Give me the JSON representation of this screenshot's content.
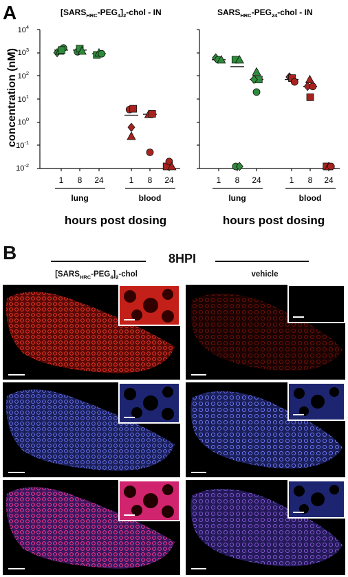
{
  "panel_a": {
    "letter": "A",
    "left_title": {
      "a": "[SARS",
      "b": "HRC",
      "c": "-PEG",
      "d": "4",
      "e": "]",
      "f": "2",
      "g": "-chol - IN"
    },
    "right_title": {
      "a": "SARS",
      "b": "HRC",
      "c": "-PEG",
      "d": "24",
      "e": "-chol - IN"
    },
    "ylabel": "concentration (nM)",
    "xlabel": "hours post dosing",
    "tissue_labels": [
      "lung",
      "blood"
    ],
    "y_tick_labels": [
      "10",
      "10",
      "10",
      "10",
      "10",
      "10",
      "10"
    ],
    "y_tick_exponents": [
      "4",
      "3",
      "2",
      "1",
      "0",
      "-1",
      "-2"
    ],
    "x_tick_labels": [
      "1",
      "8",
      "24",
      "1",
      "8",
      "24"
    ]
  },
  "panel_b": {
    "letter": "B",
    "header": "8HPI",
    "col_left": {
      "a": "[SARS",
      "b": "HRC",
      "c": "-PEG",
      "d": "4",
      "e": "]",
      "f": "2",
      "g": "-chol"
    },
    "col_right": "vehicle",
    "rows": [
      "red channel",
      "blue channel",
      "merge"
    ]
  },
  "colors": {
    "lung": "#2e8b3a",
    "blood": "#a8231f",
    "outline": "#111111"
  },
  "chart_data": [
    {
      "type": "scatter",
      "title": "[SARSHRC-PEG4]2-chol - IN",
      "ylabel": "concentration (nM)",
      "xlabel": "hours post dosing",
      "yscale": "log",
      "ylim": [
        0.01,
        10000
      ],
      "categories": [
        "lung 1",
        "lung 8",
        "lung 24",
        "blood 1",
        "blood 8",
        "blood 24"
      ],
      "series": [
        {
          "name": "lung",
          "points": [
            {
              "cat": 0,
              "y": 1000,
              "m": "diamond",
              "dx": -0.22
            },
            {
              "cat": 0,
              "y": 1200,
              "m": "triangle",
              "dx": -0.08
            },
            {
              "cat": 0,
              "y": 1600,
              "m": "circle",
              "dx": 0.12
            },
            {
              "cat": 0,
              "y": 1300,
              "m": "square",
              "dx": 0.02
            },
            {
              "cat": 1,
              "y": 1100,
              "m": "circle",
              "dx": -0.12
            },
            {
              "cat": 1,
              "y": 1500,
              "m": "square",
              "dx": 0.0
            },
            {
              "cat": 1,
              "y": 1200,
              "m": "triangle",
              "dx": 0.12
            },
            {
              "cat": 2,
              "y": 800,
              "m": "square",
              "dx": -0.12
            },
            {
              "cat": 2,
              "y": 1000,
              "m": "triangle",
              "dx": 0.0
            },
            {
              "cat": 2,
              "y": 900,
              "m": "circle",
              "dx": 0.14
            }
          ],
          "medians": [
            1300,
            1300,
            900
          ]
        },
        {
          "name": "blood",
          "points": [
            {
              "cat": 3,
              "y": 3.5,
              "m": "circle",
              "dx": -0.1
            },
            {
              "cat": 3,
              "y": 3.8,
              "m": "square",
              "dx": 0.1
            },
            {
              "cat": 3,
              "y": 0.6,
              "m": "diamond",
              "dx": 0.0
            },
            {
              "cat": 3,
              "y": 0.25,
              "m": "triangle",
              "dx": 0.0
            },
            {
              "cat": 4,
              "y": 2.2,
              "m": "triangle",
              "dx": -0.06
            },
            {
              "cat": 4,
              "y": 2.3,
              "m": "square",
              "dx": 0.12
            },
            {
              "cat": 4,
              "y": 0.05,
              "m": "circle",
              "dx": 0.0
            },
            {
              "cat": 5,
              "y": 0.01,
              "m": "square",
              "dx": -0.14
            },
            {
              "cat": 5,
              "y": 0.02,
              "m": "circle",
              "dx": 0.0
            },
            {
              "cat": 5,
              "y": 0.01,
              "m": "triangle",
              "dx": 0.14
            }
          ],
          "medians": [
            2.0,
            2.2,
            0.01
          ]
        }
      ]
    },
    {
      "type": "scatter",
      "title": "SARSHRC-PEG24-chol - IN",
      "ylabel": "concentration (nM)",
      "xlabel": "hours post dosing",
      "yscale": "log",
      "ylim": [
        0.01,
        10000
      ],
      "categories": [
        "lung 1",
        "lung 8",
        "lung 24",
        "blood 1",
        "blood 8",
        "blood 24"
      ],
      "series": [
        {
          "name": "lung",
          "points": [
            {
              "cat": 0,
              "y": 600,
              "m": "diamond",
              "dx": -0.16
            },
            {
              "cat": 0,
              "y": 500,
              "m": "circle",
              "dx": -0.02
            },
            {
              "cat": 0,
              "y": 500,
              "m": "triangle",
              "dx": 0.14
            },
            {
              "cat": 1,
              "y": 500,
              "m": "square",
              "dx": -0.1
            },
            {
              "cat": 1,
              "y": 500,
              "m": "triangle",
              "dx": 0.12
            },
            {
              "cat": 1,
              "y": 0.01,
              "m": "circle",
              "dx": -0.08
            },
            {
              "cat": 1,
              "y": 0.01,
              "m": "diamond",
              "dx": 0.12
            },
            {
              "cat": 2,
              "y": 150,
              "m": "triangle",
              "dx": 0.0
            },
            {
              "cat": 2,
              "y": 70,
              "m": "square",
              "dx": 0.12
            },
            {
              "cat": 2,
              "y": 70,
              "m": "diamond",
              "dx": -0.14
            },
            {
              "cat": 2,
              "y": 20,
              "m": "circle",
              "dx": 0.0
            }
          ],
          "medians": [
            500,
            250,
            70
          ]
        },
        {
          "name": "blood",
          "points": [
            {
              "cat": 3,
              "y": 90,
              "m": "diamond",
              "dx": -0.12
            },
            {
              "cat": 3,
              "y": 80,
              "m": "square",
              "dx": 0.02
            },
            {
              "cat": 3,
              "y": 55,
              "m": "circle",
              "dx": 0.16
            },
            {
              "cat": 4,
              "y": 70,
              "m": "triangle",
              "dx": -0.02
            },
            {
              "cat": 4,
              "y": 35,
              "m": "diamond",
              "dx": -0.14
            },
            {
              "cat": 4,
              "y": 35,
              "m": "circle",
              "dx": 0.14
            },
            {
              "cat": 4,
              "y": 12,
              "m": "square",
              "dx": 0.0
            },
            {
              "cat": 5,
              "y": 0.01,
              "m": "square",
              "dx": -0.12
            },
            {
              "cat": 5,
              "y": 0.01,
              "m": "triangle",
              "dx": 0.0
            },
            {
              "cat": 5,
              "y": 0.01,
              "m": "circle",
              "dx": 0.12
            }
          ],
          "medians": [
            70,
            35,
            0.01
          ]
        }
      ]
    }
  ]
}
